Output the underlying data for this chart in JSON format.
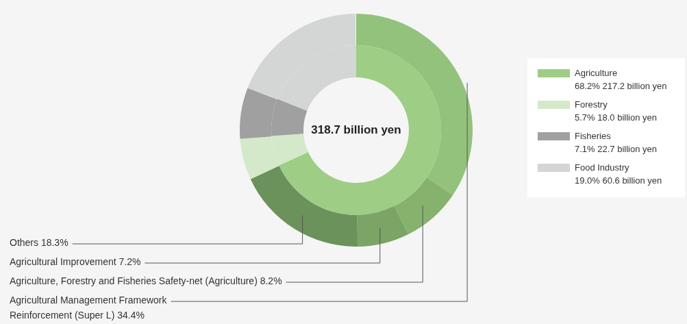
{
  "chart_data": {
    "type": "donut",
    "categories": [
      "Agriculture",
      null,
      null,
      null,
      "Forestry",
      "Fisheries",
      "Food Industry"
    ],
    "values": [
      68.2,
      null,
      null,
      null,
      5.7,
      7.1,
      19.0
    ],
    "colors": [
      "#9ecd85",
      "#9ecd85",
      "#9ecd85",
      "#9ecd85",
      "#d4e9c9",
      "#a0a0a0",
      "#d4d6d5"
    ],
    "value_labels": [
      "68.2% 217.2 billion yen",
      null,
      null,
      null,
      "5.7% 18.0 billion yen",
      "7.1% 22.7 billion yen",
      "19.0% 60.6 billion yen"
    ],
    "legend": "right",
    "annotations": [
      "318.7 billion yen"
    ],
    "series": [
      {
        "type": "donut",
        "values": [
          34.4,
          8.2,
          7.2,
          18.3,
          5.7,
          7.1,
          19.0
        ],
        "colors": [
          "#93c27d",
          "#86b26e",
          "#7ba466",
          "#6c925b",
          "#d4e9c9",
          "#a0a0a0",
          "#d4d6d5"
        ],
        "value_labels": [
          "Agricultural Management Framework Reinforcement (Super L) 34.4%",
          "Agriculture, Forestry and Fisheries Safety-net (Agriculture) 8.2%",
          "Agricultural Improvement 7.2%",
          "Others 18.3%",
          null,
          null,
          null
        ]
      }
    ]
  }
}
